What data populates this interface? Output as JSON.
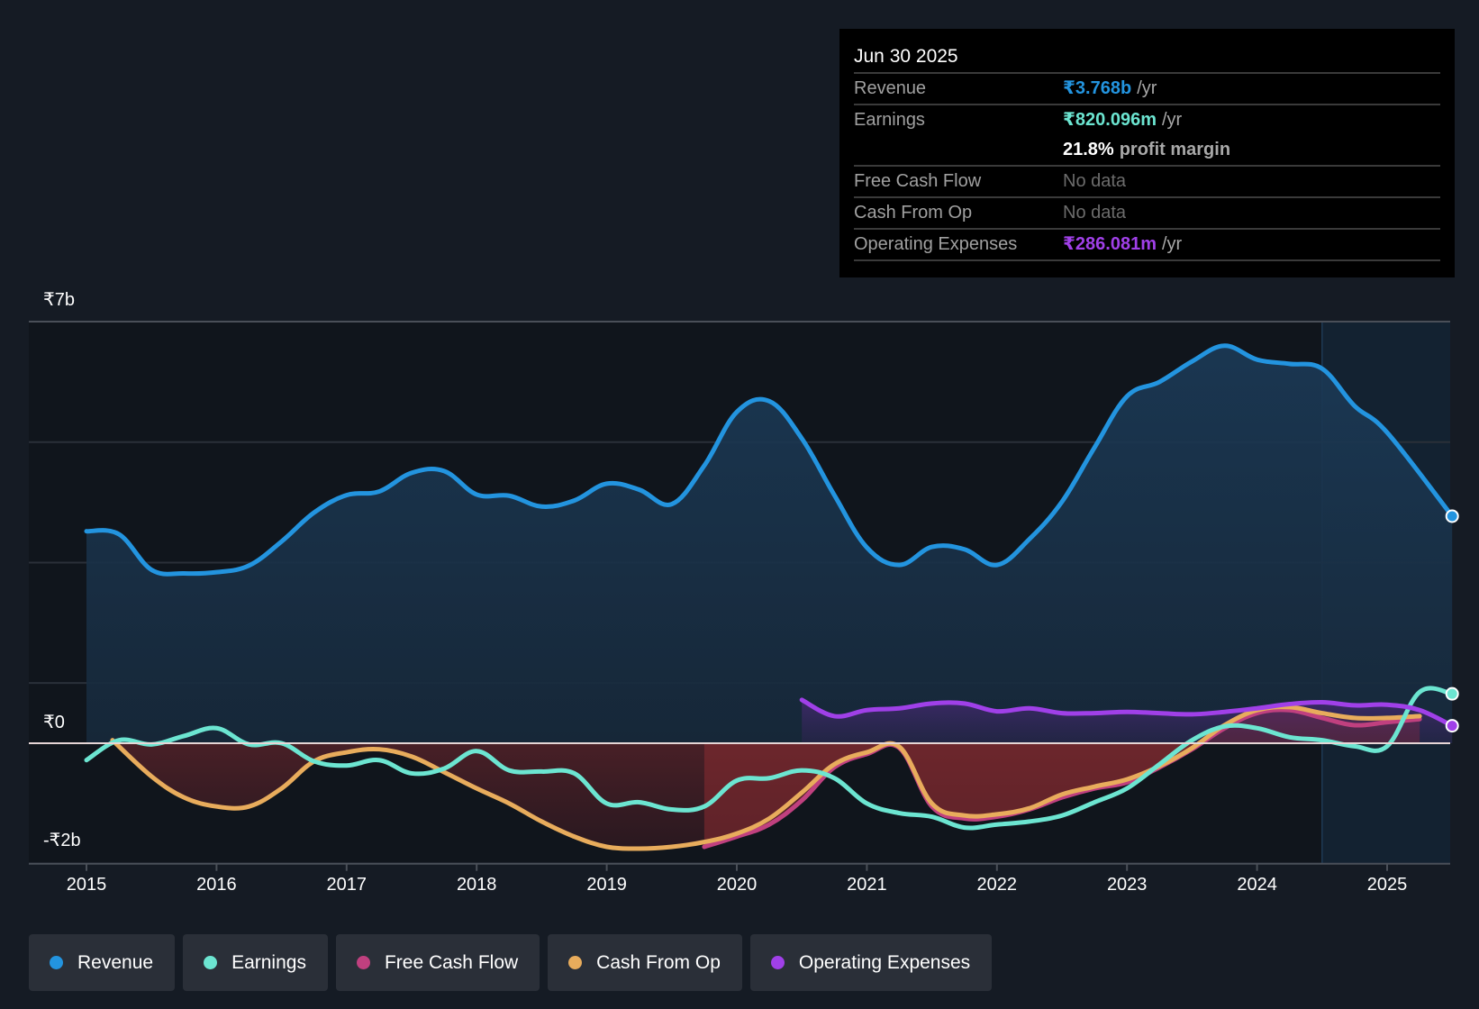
{
  "tooltip": {
    "date": "Jun 30 2025",
    "rows": [
      {
        "label": "Revenue",
        "value": "₹3.768b",
        "unit": "/yr",
        "color": "#2394df"
      },
      {
        "label": "Earnings",
        "value": "₹820.096m",
        "unit": "/yr",
        "color": "#6ce5d1"
      },
      {
        "label": "",
        "value": "21.8%",
        "unit": "profit margin",
        "color": "#ffffff"
      },
      {
        "label": "Free Cash Flow",
        "value": "No data",
        "unit": "",
        "color": "#6c6c6c"
      },
      {
        "label": "Cash From Op",
        "value": "No data",
        "unit": "",
        "color": "#6c6c6c"
      },
      {
        "label": "Operating Expenses",
        "value": "₹286.081m",
        "unit": "/yr",
        "color": "#a040e8"
      }
    ]
  },
  "legend": [
    {
      "label": "Revenue",
      "color": "#2394df"
    },
    {
      "label": "Earnings",
      "color": "#6ce5d1"
    },
    {
      "label": "Free Cash Flow",
      "color": "#c0407f"
    },
    {
      "label": "Cash From Op",
      "color": "#e8ac5c"
    },
    {
      "label": "Operating Expenses",
      "color": "#a040e8"
    }
  ],
  "chart_data": {
    "type": "area",
    "title": "",
    "xlabel": "",
    "ylabel": "",
    "y_tick_labels": [
      "₹7b",
      "₹0",
      "-₹2b"
    ],
    "ylim": [
      -2,
      7
    ],
    "xlim": [
      2015.0,
      2025.5
    ],
    "x_tick_labels": [
      "2015",
      "2016",
      "2017",
      "2018",
      "2019",
      "2020",
      "2021",
      "2022",
      "2023",
      "2024",
      "2025"
    ],
    "x_ticks": [
      2015,
      2016,
      2017,
      2018,
      2019,
      2020,
      2021,
      2022,
      2023,
      2024,
      2025
    ],
    "grid": true,
    "forecast_shade_start": 2024.5,
    "series": [
      {
        "name": "Revenue",
        "color": "#2394df",
        "points": [
          [
            2015.0,
            3.52
          ],
          [
            2015.25,
            3.47
          ],
          [
            2015.5,
            2.88
          ],
          [
            2015.75,
            2.82
          ],
          [
            2016.0,
            2.84
          ],
          [
            2016.25,
            2.95
          ],
          [
            2016.5,
            3.35
          ],
          [
            2016.75,
            3.83
          ],
          [
            2017.0,
            4.12
          ],
          [
            2017.25,
            4.18
          ],
          [
            2017.5,
            4.49
          ],
          [
            2017.75,
            4.52
          ],
          [
            2018.0,
            4.13
          ],
          [
            2018.25,
            4.11
          ],
          [
            2018.5,
            3.93
          ],
          [
            2018.75,
            4.03
          ],
          [
            2019.0,
            4.31
          ],
          [
            2019.25,
            4.21
          ],
          [
            2019.5,
            3.97
          ],
          [
            2019.75,
            4.61
          ],
          [
            2020.0,
            5.5
          ],
          [
            2020.25,
            5.68
          ],
          [
            2020.5,
            5.06
          ],
          [
            2020.75,
            4.12
          ],
          [
            2021.0,
            3.25
          ],
          [
            2021.25,
            2.96
          ],
          [
            2021.5,
            3.26
          ],
          [
            2021.75,
            3.22
          ],
          [
            2022.0,
            2.96
          ],
          [
            2022.25,
            3.39
          ],
          [
            2022.5,
            4.01
          ],
          [
            2022.75,
            4.91
          ],
          [
            2023.0,
            5.76
          ],
          [
            2023.25,
            6.0
          ],
          [
            2023.5,
            6.34
          ],
          [
            2023.75,
            6.6
          ],
          [
            2024.0,
            6.37
          ],
          [
            2024.25,
            6.3
          ],
          [
            2024.5,
            6.22
          ],
          [
            2024.75,
            5.6
          ],
          [
            2025.0,
            5.16
          ],
          [
            2025.5,
            3.77
          ]
        ]
      },
      {
        "name": "Earnings",
        "color": "#6ce5d1",
        "points": [
          [
            2015.0,
            -0.28
          ],
          [
            2015.25,
            0.05
          ],
          [
            2015.5,
            -0.02
          ],
          [
            2015.75,
            0.12
          ],
          [
            2016.0,
            0.25
          ],
          [
            2016.25,
            -0.02
          ],
          [
            2016.5,
            0.0
          ],
          [
            2016.75,
            -0.3
          ],
          [
            2017.0,
            -0.37
          ],
          [
            2017.25,
            -0.28
          ],
          [
            2017.5,
            -0.5
          ],
          [
            2017.75,
            -0.42
          ],
          [
            2018.0,
            -0.13
          ],
          [
            2018.25,
            -0.45
          ],
          [
            2018.5,
            -0.47
          ],
          [
            2018.75,
            -0.5
          ],
          [
            2019.0,
            -1.0
          ],
          [
            2019.25,
            -0.98
          ],
          [
            2019.5,
            -1.1
          ],
          [
            2019.75,
            -1.05
          ],
          [
            2020.0,
            -0.62
          ],
          [
            2020.25,
            -0.58
          ],
          [
            2020.5,
            -0.45
          ],
          [
            2020.75,
            -0.58
          ],
          [
            2021.0,
            -1.0
          ],
          [
            2021.25,
            -1.16
          ],
          [
            2021.5,
            -1.22
          ],
          [
            2021.75,
            -1.4
          ],
          [
            2022.0,
            -1.35
          ],
          [
            2022.25,
            -1.3
          ],
          [
            2022.5,
            -1.2
          ],
          [
            2022.75,
            -0.98
          ],
          [
            2023.0,
            -0.75
          ],
          [
            2023.25,
            -0.35
          ],
          [
            2023.5,
            0.05
          ],
          [
            2023.75,
            0.28
          ],
          [
            2024.0,
            0.25
          ],
          [
            2024.25,
            0.1
          ],
          [
            2024.5,
            0.05
          ],
          [
            2024.75,
            -0.05
          ],
          [
            2025.0,
            -0.05
          ],
          [
            2025.25,
            0.85
          ],
          [
            2025.5,
            0.82
          ]
        ]
      },
      {
        "name": "Free Cash Flow",
        "color": "#c0407f",
        "points": [
          [
            2019.75,
            -1.72
          ],
          [
            2020.0,
            -1.55
          ],
          [
            2020.25,
            -1.35
          ],
          [
            2020.5,
            -0.95
          ],
          [
            2020.75,
            -0.4
          ],
          [
            2021.0,
            -0.18
          ],
          [
            2021.25,
            -0.08
          ],
          [
            2021.5,
            -1.05
          ],
          [
            2021.75,
            -1.25
          ],
          [
            2022.0,
            -1.22
          ],
          [
            2022.25,
            -1.1
          ],
          [
            2022.5,
            -0.9
          ],
          [
            2022.75,
            -0.75
          ],
          [
            2023.0,
            -0.65
          ],
          [
            2023.25,
            -0.4
          ],
          [
            2023.5,
            -0.1
          ],
          [
            2023.75,
            0.25
          ],
          [
            2024.0,
            0.5
          ],
          [
            2024.25,
            0.55
          ],
          [
            2024.5,
            0.42
          ],
          [
            2024.75,
            0.3
          ],
          [
            2025.0,
            0.35
          ],
          [
            2025.25,
            0.4
          ]
        ]
      },
      {
        "name": "Cash From Op",
        "color": "#e8ac5c",
        "points": [
          [
            2015.2,
            0.05
          ],
          [
            2015.5,
            -0.55
          ],
          [
            2015.75,
            -0.9
          ],
          [
            2016.0,
            -1.05
          ],
          [
            2016.25,
            -1.05
          ],
          [
            2016.5,
            -0.75
          ],
          [
            2016.75,
            -0.3
          ],
          [
            2017.0,
            -0.15
          ],
          [
            2017.25,
            -0.1
          ],
          [
            2017.5,
            -0.22
          ],
          [
            2017.75,
            -0.48
          ],
          [
            2018.0,
            -0.75
          ],
          [
            2018.25,
            -1.0
          ],
          [
            2018.5,
            -1.3
          ],
          [
            2018.75,
            -1.55
          ],
          [
            2019.0,
            -1.72
          ],
          [
            2019.25,
            -1.75
          ],
          [
            2019.5,
            -1.72
          ],
          [
            2019.75,
            -1.64
          ],
          [
            2020.0,
            -1.5
          ],
          [
            2020.25,
            -1.25
          ],
          [
            2020.5,
            -0.82
          ],
          [
            2020.75,
            -0.35
          ],
          [
            2021.0,
            -0.15
          ],
          [
            2021.25,
            -0.06
          ],
          [
            2021.5,
            -1.0
          ],
          [
            2021.75,
            -1.2
          ],
          [
            2022.0,
            -1.18
          ],
          [
            2022.25,
            -1.08
          ],
          [
            2022.5,
            -0.85
          ],
          [
            2022.75,
            -0.72
          ],
          [
            2023.0,
            -0.6
          ],
          [
            2023.25,
            -0.38
          ],
          [
            2023.5,
            -0.08
          ],
          [
            2023.75,
            0.3
          ],
          [
            2024.0,
            0.55
          ],
          [
            2024.25,
            0.6
          ],
          [
            2024.5,
            0.5
          ],
          [
            2024.75,
            0.42
          ],
          [
            2025.0,
            0.42
          ],
          [
            2025.25,
            0.45
          ]
        ]
      },
      {
        "name": "Operating Expenses",
        "color": "#a040e8",
        "points": [
          [
            2020.5,
            0.72
          ],
          [
            2020.75,
            0.45
          ],
          [
            2021.0,
            0.55
          ],
          [
            2021.25,
            0.58
          ],
          [
            2021.5,
            0.66
          ],
          [
            2021.75,
            0.66
          ],
          [
            2022.0,
            0.53
          ],
          [
            2022.25,
            0.58
          ],
          [
            2022.5,
            0.5
          ],
          [
            2022.75,
            0.5
          ],
          [
            2023.0,
            0.52
          ],
          [
            2023.25,
            0.5
          ],
          [
            2023.5,
            0.48
          ],
          [
            2023.75,
            0.52
          ],
          [
            2024.0,
            0.58
          ],
          [
            2024.25,
            0.65
          ],
          [
            2024.5,
            0.68
          ],
          [
            2024.75,
            0.63
          ],
          [
            2025.0,
            0.64
          ],
          [
            2025.25,
            0.55
          ],
          [
            2025.5,
            0.29
          ]
        ]
      }
    ]
  }
}
